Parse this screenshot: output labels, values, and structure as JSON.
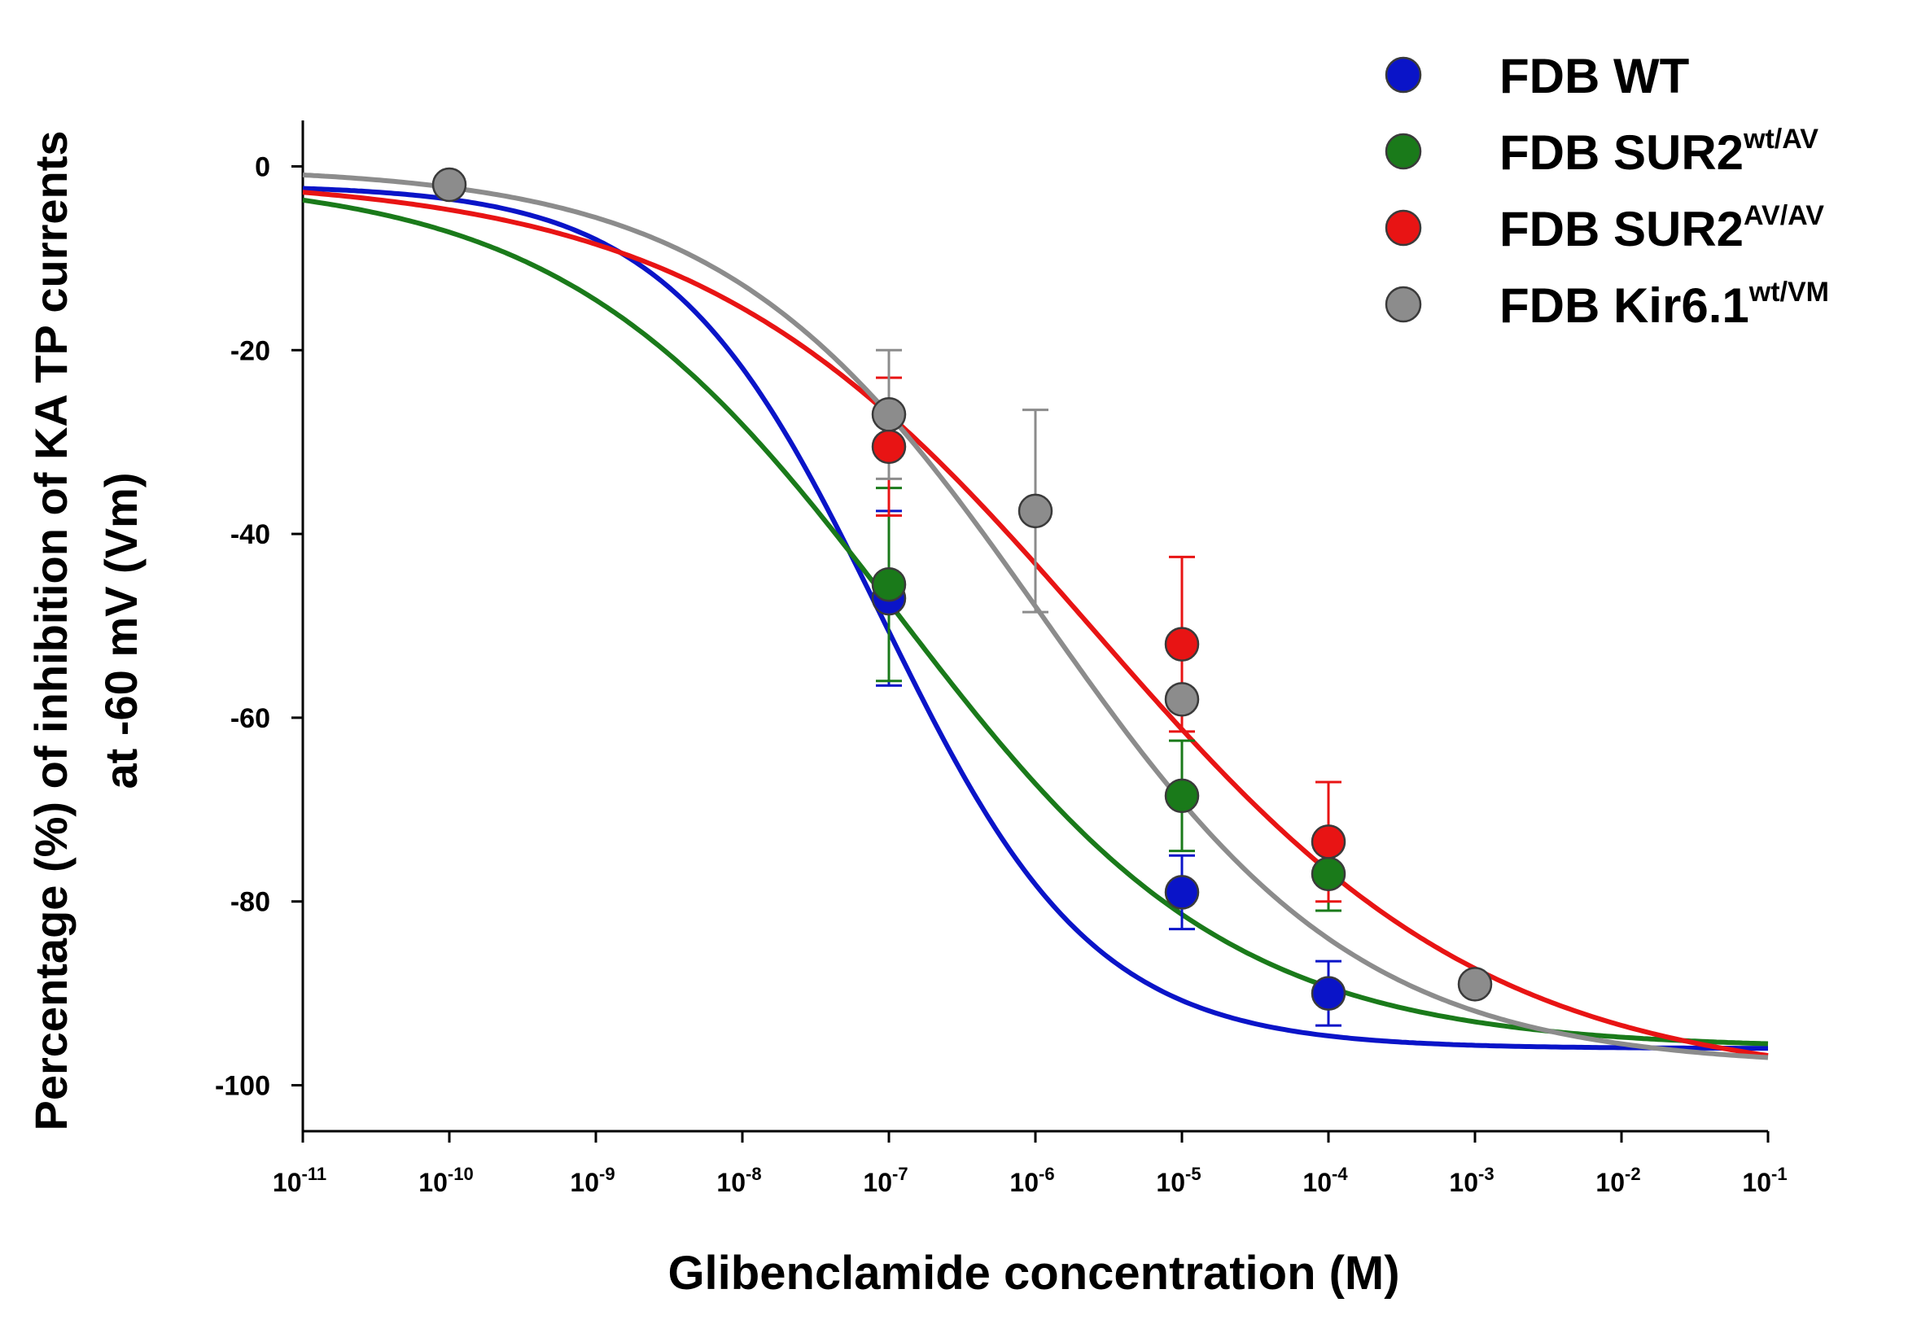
{
  "chart_data": {
    "type": "scatter",
    "title": "",
    "xlabel": "Glibenclamide concentration (M)",
    "ylabel_line1": "Percentage (%) of inhibition of KA TP currents",
    "ylabel_line2": "at -60 mV (Vm)",
    "x_scale": "log10",
    "xlim_exp": [
      -11,
      -1
    ],
    "x_ticks": [
      {
        "base": "10",
        "exp": "-11"
      },
      {
        "base": "10",
        "exp": "-10"
      },
      {
        "base": "10",
        "exp": "-9"
      },
      {
        "base": "10",
        "exp": "-8"
      },
      {
        "base": "10",
        "exp": "-7"
      },
      {
        "base": "10",
        "exp": "-6"
      },
      {
        "base": "10",
        "exp": "-5"
      },
      {
        "base": "10",
        "exp": "-4"
      },
      {
        "base": "10",
        "exp": "-3"
      },
      {
        "base": "10",
        "exp": "-2"
      },
      {
        "base": "10",
        "exp": "-1"
      }
    ],
    "ylim": [
      -105,
      5
    ],
    "y_ticks": [
      "0",
      "-20",
      "-40",
      "-60",
      "-80",
      "-100"
    ],
    "legend_position": "top-right",
    "series": [
      {
        "name": "FDB WT",
        "name_base": "FDB WT",
        "name_sup": "",
        "color": "#0a14c8",
        "points": [
          {
            "log_x": -7,
            "y": -47,
            "err": 9.5
          },
          {
            "log_x": -5,
            "y": -79,
            "err": 4
          },
          {
            "log_x": -4,
            "y": -90,
            "err": 3.5
          }
        ],
        "fit": {
          "top": -2,
          "bottom": -96,
          "log_ic50": -7.05,
          "hill": 0.6
        }
      },
      {
        "name": "FDB SUR2wt/AV",
        "name_base": "FDB SUR2",
        "name_sup": "wt/AV",
        "color": "#1a7a1a",
        "points": [
          {
            "log_x": -7,
            "y": -45.5,
            "err": 10.5
          },
          {
            "log_x": -5,
            "y": -68.5,
            "err": 6
          },
          {
            "log_x": -4,
            "y": -77,
            "err": 4
          }
        ],
        "fit": {
          "top": -1,
          "bottom": -96,
          "log_ic50": -6.95,
          "hill": 0.38
        }
      },
      {
        "name": "FDB SUR2AV/AV",
        "name_base": "FDB SUR2",
        "name_sup": "AV/AV",
        "color": "#e81414",
        "points": [
          {
            "log_x": -7,
            "y": -30.5,
            "err": 7.5
          },
          {
            "log_x": -5,
            "y": -52,
            "err": 9.5
          },
          {
            "log_x": -4,
            "y": -73.5,
            "err": 6.5
          }
        ],
        "fit": {
          "top": -1,
          "bottom": -100,
          "log_ic50": -5.6,
          "hill": 0.32
        }
      },
      {
        "name": "FDB Kir6.1wt/VM",
        "name_base": "FDB Kir6.1",
        "name_sup": "wt/VM",
        "color": "#8c8c8c",
        "points": [
          {
            "log_x": -10,
            "y": -2,
            "err": 0
          },
          {
            "log_x": -7,
            "y": -27,
            "err": 7
          },
          {
            "log_x": -6,
            "y": -37.5,
            "err": 11
          },
          {
            "log_x": -5,
            "y": -58,
            "err": 0
          },
          {
            "log_x": -3,
            "y": -89,
            "err": 0
          }
        ],
        "fit": {
          "top": 0,
          "bottom": -98,
          "log_ic50": -5.95,
          "hill": 0.4
        }
      }
    ]
  }
}
